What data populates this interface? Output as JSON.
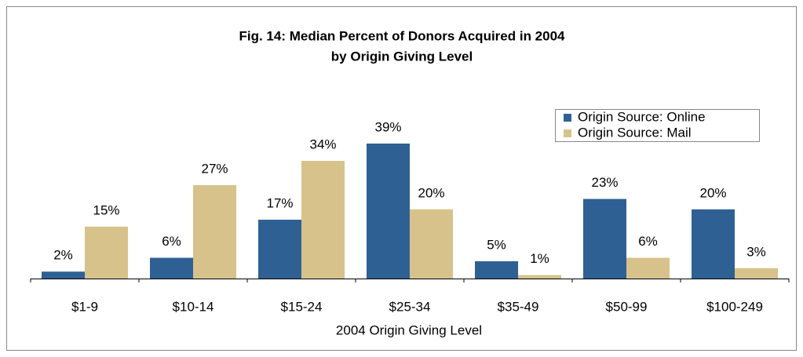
{
  "chart_data": {
    "type": "bar",
    "title": [
      "Fig. 14: Median Percent of Donors Acquired in 2004",
      "by Origin Giving Level"
    ],
    "categories": [
      "$1-9",
      "$10-14",
      "$15-24",
      "$25-34",
      "$35-49",
      "$50-99",
      "$100-249"
    ],
    "x_label": "2004 Origin Giving Level",
    "series": [
      {
        "name": "Origin Source: Online",
        "color": "#2f6094",
        "values": [
          2,
          6,
          17,
          39,
          5,
          23,
          20
        ],
        "value_labels": [
          "2%",
          "6%",
          "17%",
          "39%",
          "5%",
          "23%",
          "20%"
        ]
      },
      {
        "name": "Origin Source: Mail",
        "color": "#d6c28a",
        "values": [
          15,
          27,
          34,
          20,
          1,
          6,
          3
        ],
        "value_labels": [
          "15%",
          "27%",
          "34%",
          "20%",
          "1%",
          "6%",
          "3%"
        ]
      }
    ],
    "legend": "upper right"
  }
}
